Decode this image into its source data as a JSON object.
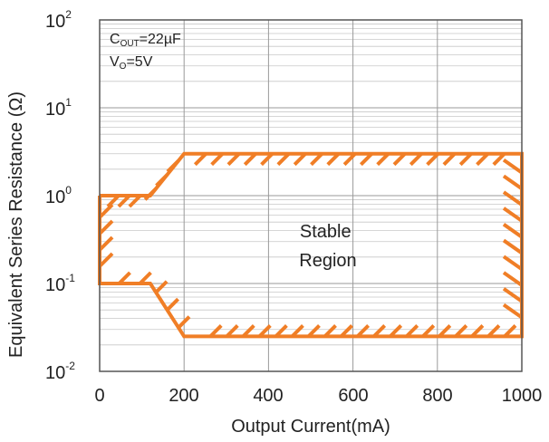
{
  "chart_data": {
    "type": "line",
    "xlabel": "Output Current(mA)",
    "ylabel": "Equivalent Series Resistance (Ω)",
    "x_ticks": [
      "0",
      "200",
      "400",
      "600",
      "800",
      "1000"
    ],
    "y_ticks": [
      {
        "base": "10",
        "exp": "-2"
      },
      {
        "base": "10",
        "exp": "-1"
      },
      {
        "base": "10",
        "exp": "0"
      },
      {
        "base": "10",
        "exp": "1"
      },
      {
        "base": "10",
        "exp": "2"
      }
    ],
    "xlim": [
      0,
      1000
    ],
    "ylim": [
      0.01,
      100
    ],
    "y_scale": "log",
    "grid": true,
    "conditions": {
      "cout": {
        "prefix": "C",
        "sub": "OUT",
        "value": "=22µF"
      },
      "vo": {
        "prefix": "V",
        "sub": "O",
        "value": "=5V"
      }
    },
    "region_label": [
      "Stable",
      "Region"
    ],
    "boundary": {
      "x": [
        0,
        120,
        200,
        1000,
        1000,
        200,
        120,
        0,
        0
      ],
      "y": [
        1.0,
        1.0,
        3.0,
        3.0,
        0.025,
        0.025,
        0.1,
        0.1,
        1.0
      ]
    },
    "boundary_color": "#F07E26"
  }
}
